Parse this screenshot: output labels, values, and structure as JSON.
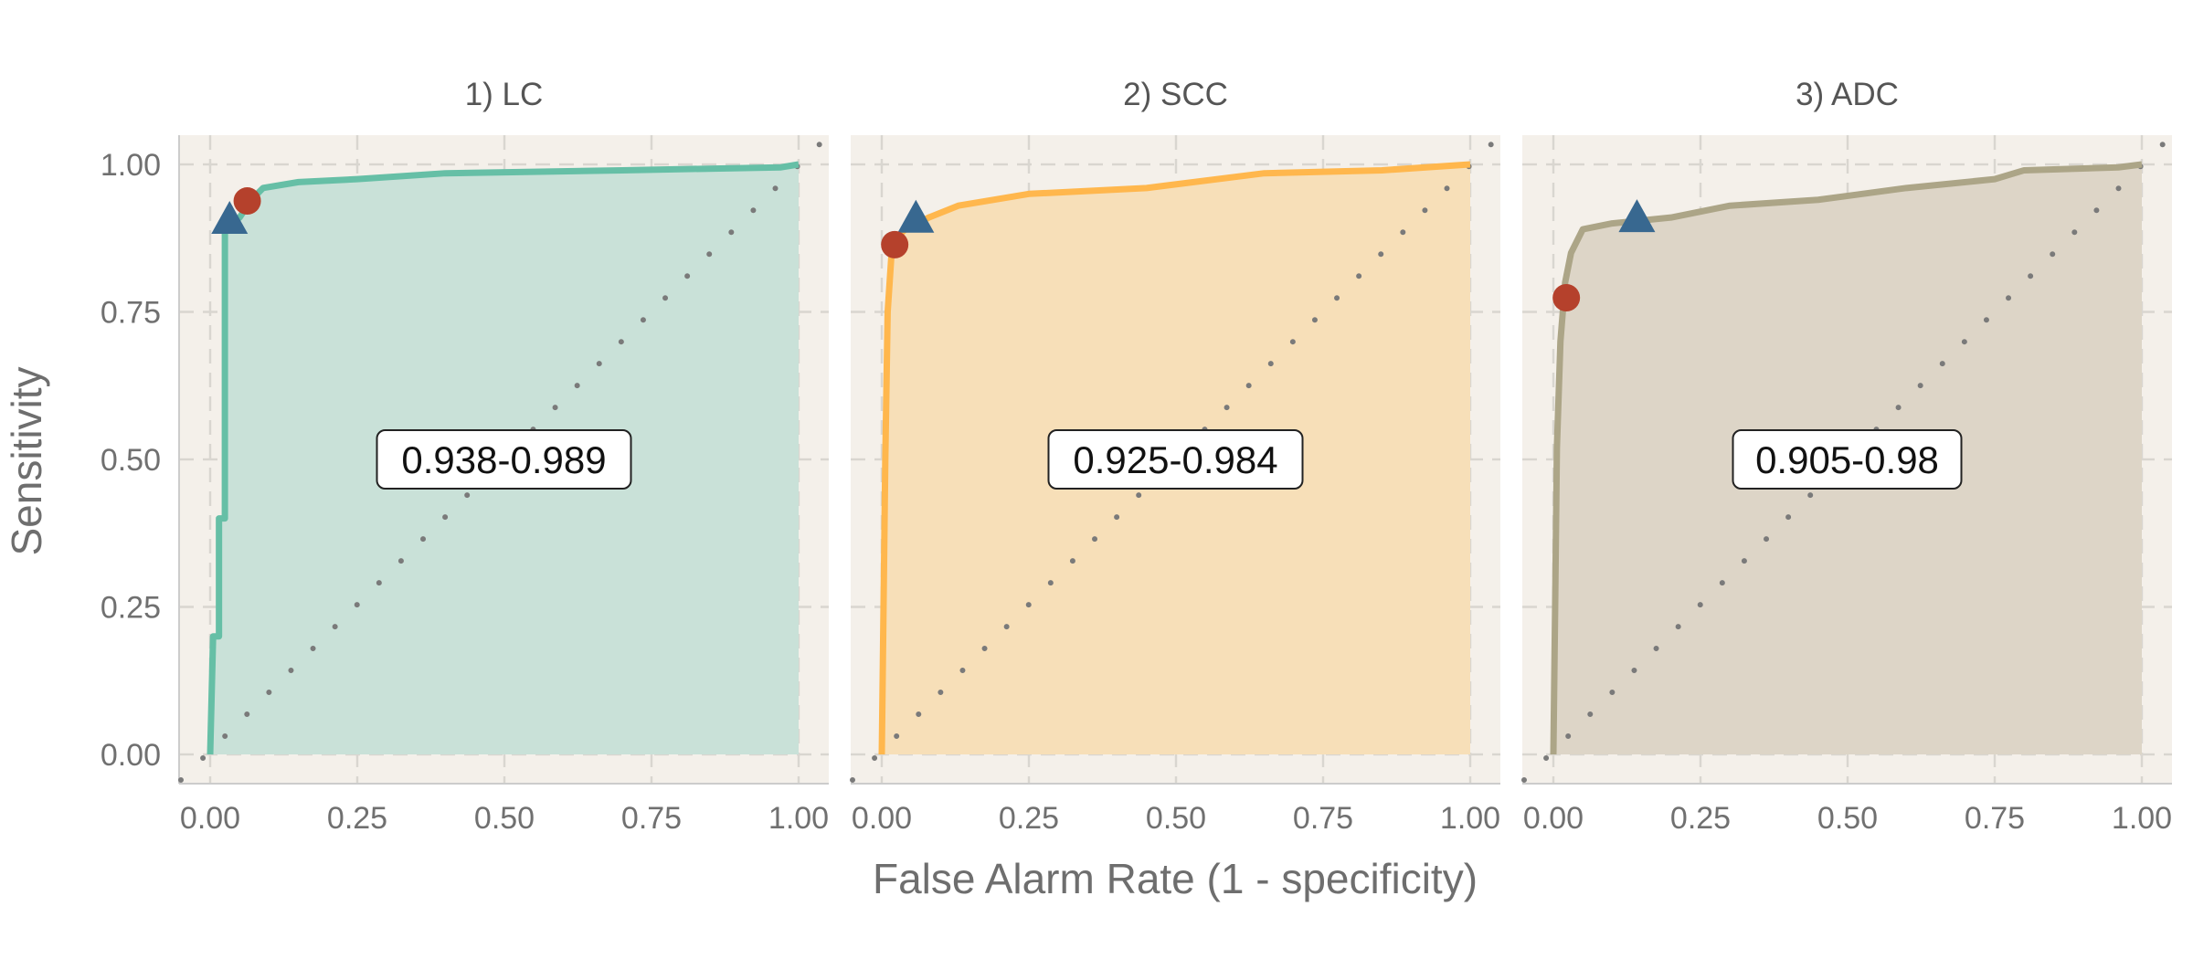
{
  "chart_data": {
    "type": "line",
    "xlabel": "False Alarm Rate (1 - specificity)",
    "ylabel": "Sensitivity",
    "xlim": [
      0,
      1
    ],
    "ylim": [
      0,
      1
    ],
    "x_ticks": [
      "0.00",
      "0.25",
      "0.50",
      "0.75",
      "1.00"
    ],
    "y_ticks": [
      "0.00",
      "0.25",
      "0.50",
      "0.75",
      "1.00"
    ],
    "grid": true,
    "reference_line": "diagonal",
    "colors": {
      "panel_bg": "#f4f0ea",
      "grid": "#d9d6d0",
      "diagonal": "#7a7a7a",
      "circle_marker": "#b5412c",
      "triangle_marker": "#386890"
    },
    "panels": [
      {
        "title": "1) LC",
        "auc_label": "0.938-0.989",
        "line_color": "#66bfa6",
        "fill_color": "#c9e1d8",
        "roc": [
          [
            0,
            0
          ],
          [
            0.005,
            0.2
          ],
          [
            0.015,
            0.2
          ],
          [
            0.015,
            0.4
          ],
          [
            0.025,
            0.4
          ],
          [
            0.025,
            0.89
          ],
          [
            0.05,
            0.91
          ],
          [
            0.07,
            0.94
          ],
          [
            0.09,
            0.96
          ],
          [
            0.15,
            0.97
          ],
          [
            0.25,
            0.975
          ],
          [
            0.4,
            0.985
          ],
          [
            0.7,
            0.99
          ],
          [
            0.97,
            0.995
          ],
          [
            1,
            1
          ]
        ],
        "circle": [
          0.063,
          0.938
        ],
        "triangle": [
          0.033,
          0.904
        ]
      },
      {
        "title": "2) SCC",
        "auc_label": "0.925-0.984",
        "line_color": "#ffb74d",
        "fill_color": "#f7dfb8",
        "roc": [
          [
            0,
            0
          ],
          [
            0.003,
            0.25
          ],
          [
            0.006,
            0.5
          ],
          [
            0.01,
            0.75
          ],
          [
            0.018,
            0.87
          ],
          [
            0.04,
            0.89
          ],
          [
            0.08,
            0.91
          ],
          [
            0.13,
            0.93
          ],
          [
            0.25,
            0.95
          ],
          [
            0.45,
            0.96
          ],
          [
            0.65,
            0.985
          ],
          [
            0.85,
            0.99
          ],
          [
            1,
            1
          ]
        ],
        "circle": [
          0.022,
          0.864
        ],
        "triangle": [
          0.058,
          0.906
        ]
      },
      {
        "title": "3) ADC",
        "auc_label": "0.905-0.98",
        "line_color": "#aca587",
        "fill_color": "#ddd5c7",
        "roc": [
          [
            0,
            0
          ],
          [
            0.003,
            0.25
          ],
          [
            0.006,
            0.52
          ],
          [
            0.012,
            0.7
          ],
          [
            0.02,
            0.8
          ],
          [
            0.03,
            0.85
          ],
          [
            0.05,
            0.89
          ],
          [
            0.1,
            0.9
          ],
          [
            0.2,
            0.91
          ],
          [
            0.3,
            0.93
          ],
          [
            0.45,
            0.94
          ],
          [
            0.6,
            0.96
          ],
          [
            0.75,
            0.975
          ],
          [
            0.8,
            0.99
          ],
          [
            0.96,
            0.995
          ],
          [
            1,
            1
          ]
        ],
        "circle": [
          0.022,
          0.774
        ],
        "triangle": [
          0.142,
          0.907
        ]
      }
    ]
  }
}
